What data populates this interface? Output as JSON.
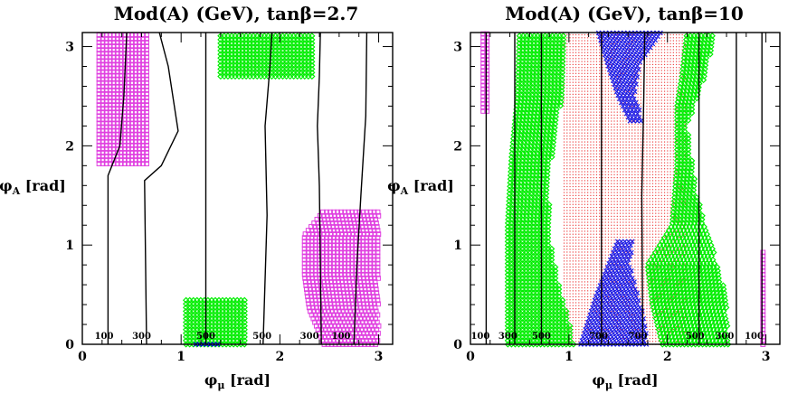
{
  "chart_data": [
    {
      "type": "scatter",
      "title": "Mod(A) (GeV), tanβ=2.7",
      "xlabel": "φμ [rad]",
      "ylabel": "φA [rad]",
      "xlim": [
        0,
        3.14159
      ],
      "ylim": [
        0,
        3.14159
      ],
      "x_ticks": [
        0,
        1,
        2,
        3
      ],
      "y_ticks": [
        0,
        1,
        2,
        3
      ],
      "grid": false,
      "series": [
        {
          "marker": "square",
          "color": "#e040e0",
          "regions": [
            {
              "x_range": [
                0.17,
                0.68
              ],
              "y_top": 3.14,
              "y_bot": 1.82,
              "right_profile": [
                [
                  3.14,
                  0.68
                ],
                [
                  2.7,
                  0.82
                ],
                [
                  2.3,
                  0.9
                ],
                [
                  2.1,
                  0.96
                ],
                [
                  1.82,
                  0.7
                ]
              ]
            },
            {
              "x_range": [
                2.2,
                3.0
              ],
              "y_top": 1.35,
              "y_bot": 0.0,
              "left_profile": [
                [
                  1.35,
                  2.45
                ],
                [
                  1.1,
                  2.25
                ],
                [
                  0.7,
                  2.25
                ],
                [
                  0.35,
                  2.3
                ],
                [
                  0.0,
                  2.45
                ]
              ]
            }
          ]
        },
        {
          "marker": "diamond",
          "color": "#00ee00",
          "regions": [
            {
              "x_range": [
                1.4,
                2.35
              ],
              "y_top": 3.14,
              "y_bot": 2.7
            },
            {
              "x_range": [
                1.05,
                1.65
              ],
              "y_top": 0.45,
              "y_bot": 0.0
            }
          ]
        },
        {
          "marker": "cross",
          "color": "#0000dd",
          "regions": [
            {
              "x_range": [
                1.15,
                1.4
              ],
              "y_top": 0.03,
              "y_bot": 0.0
            }
          ]
        }
      ],
      "contours": [
        {
          "label": "100",
          "label_x": 0.22,
          "points": [
            [
              0.26,
              0
            ],
            [
              0.26,
              1.7
            ],
            [
              0.38,
              2.0
            ],
            [
              0.42,
              2.5
            ],
            [
              0.45,
              3.14
            ]
          ]
        },
        {
          "label": "300",
          "label_x": 0.6,
          "points": [
            [
              0.65,
              0
            ],
            [
              0.63,
              1.65
            ],
            [
              0.8,
              1.8
            ],
            [
              0.97,
              2.15
            ],
            [
              0.87,
              2.8
            ],
            [
              0.78,
              3.14
            ]
          ]
        },
        {
          "label": "500",
          "label_x": 1.25,
          "points": [
            [
              1.25,
              0
            ],
            [
              1.25,
              3.14
            ]
          ]
        },
        {
          "label": "500",
          "label_x": 1.82,
          "points": [
            [
              1.83,
              0
            ],
            [
              1.87,
              1.3
            ],
            [
              1.85,
              2.2
            ],
            [
              1.9,
              2.8
            ],
            [
              1.92,
              3.14
            ]
          ]
        },
        {
          "label": "300",
          "label_x": 2.3,
          "points": [
            [
              2.42,
              0
            ],
            [
              2.4,
              1.6
            ],
            [
              2.38,
              2.2
            ],
            [
              2.4,
              2.7
            ],
            [
              2.41,
              3.14
            ]
          ]
        },
        {
          "label": "100",
          "label_x": 2.62,
          "points": [
            [
              2.75,
              0
            ],
            [
              2.78,
              0.8
            ],
            [
              2.82,
              1.5
            ],
            [
              2.87,
              2.3
            ],
            [
              2.88,
              3.14
            ]
          ]
        }
      ]
    },
    {
      "type": "scatter",
      "title": "Mod(A) (GeV), tanβ=10",
      "xlabel": "φμ [rad]",
      "ylabel": "φA [rad]",
      "xlim": [
        0,
        3.14159
      ],
      "ylim": [
        0,
        3.14159
      ],
      "x_ticks": [
        0,
        1,
        2,
        3
      ],
      "y_ticks": [
        0,
        1,
        2,
        3
      ],
      "grid": false,
      "series": [
        {
          "marker": "dot",
          "color": "#ee4444",
          "regions": [
            {
              "x_range": [
                0.95,
                2.2
              ],
              "y_top": 3.14,
              "y_bot": 0.0
            }
          ]
        },
        {
          "marker": "diamond",
          "color": "#00ee00",
          "regions": [
            {
              "x_range": [
                0.38,
                1.2
              ],
              "y_top": 3.14,
              "y_bot": 0.0,
              "right_profile": [
                [
                  3.14,
                  0.95
                ],
                [
                  2.6,
                  0.95
                ],
                [
                  2.2,
                  0.88
                ],
                [
                  1.7,
                  0.8
                ],
                [
                  1.1,
                  0.8
                ],
                [
                  0.6,
                  0.9
                ],
                [
                  0.25,
                  1.0
                ],
                [
                  0.0,
                  1.05
                ]
              ],
              "left_profile": [
                [
                  3.14,
                  0.5
                ],
                [
                  2.5,
                  0.48
                ],
                [
                  1.9,
                  0.42
                ],
                [
                  1.2,
                  0.38
                ],
                [
                  0.6,
                  0.38
                ],
                [
                  0.0,
                  0.38
                ]
              ]
            },
            {
              "x_range": [
                1.75,
                2.7
              ],
              "y_top": 3.14,
              "y_bot": 0.0,
              "left_profile": [
                [
                  3.14,
                  2.2
                ],
                [
                  2.7,
                  2.15
                ],
                [
                  2.4,
                  2.1
                ],
                [
                  1.8,
                  2.1
                ],
                [
                  1.2,
                  2.05
                ],
                [
                  0.8,
                  1.8
                ],
                [
                  0.4,
                  1.85
                ],
                [
                  0.0,
                  1.95
                ]
              ],
              "right_profile": [
                [
                  3.14,
                  2.5
                ],
                [
                  2.6,
                  2.35
                ],
                [
                  2.2,
                  2.2
                ],
                [
                  1.5,
                  2.3
                ],
                [
                  1.0,
                  2.45
                ],
                [
                  0.5,
                  2.6
                ],
                [
                  0.0,
                  2.62
                ]
              ]
            }
          ]
        },
        {
          "marker": "cross",
          "color": "#1a1ae6",
          "regions": [
            {
              "x_range": [
                1.3,
                1.95
              ],
              "y_top": 3.14,
              "y_bot": 2.25,
              "left_profile": [
                [
                  3.14,
                  1.3
                ],
                [
                  2.8,
                  1.4
                ],
                [
                  2.5,
                  1.5
                ],
                [
                  2.25,
                  1.62
                ]
              ],
              "right_profile": [
                [
                  3.14,
                  1.95
                ],
                [
                  2.8,
                  1.72
                ],
                [
                  2.5,
                  1.68
                ],
                [
                  2.25,
                  1.75
                ]
              ]
            },
            {
              "x_range": [
                1.12,
                1.8
              ],
              "y_top": 1.05,
              "y_bot": 0.0,
              "left_profile": [
                [
                  1.05,
                  1.5
                ],
                [
                  0.8,
                  1.4
                ],
                [
                  0.5,
                  1.28
                ],
                [
                  0.25,
                  1.2
                ],
                [
                  0.0,
                  1.12
                ]
              ],
              "right_profile": [
                [
                  1.05,
                  1.65
                ],
                [
                  0.8,
                  1.62
                ],
                [
                  0.5,
                  1.7
                ],
                [
                  0.25,
                  1.78
                ],
                [
                  0.0,
                  1.8
                ]
              ]
            }
          ]
        },
        {
          "marker": "square",
          "color": "#e040e0",
          "regions": [
            {
              "x_range": [
                0.13,
                0.17
              ],
              "y_top": 3.14,
              "y_bot": 2.35
            },
            {
              "x_range": [
                2.97,
                3.0
              ],
              "y_top": 0.95,
              "y_bot": 0.0
            }
          ]
        }
      ],
      "contours": [
        {
          "label": "100",
          "label_x": 0.1,
          "points": [
            [
              0.16,
              0
            ],
            [
              0.16,
              3.14
            ]
          ]
        },
        {
          "label": "300",
          "label_x": 0.38,
          "points": [
            [
              0.45,
              0
            ],
            [
              0.45,
              3.14
            ]
          ]
        },
        {
          "label": "500",
          "label_x": 0.72,
          "points": [
            [
              0.72,
              0
            ],
            [
              0.72,
              3.14
            ]
          ]
        },
        {
          "label": "700",
          "label_x": 1.3,
          "points": [
            [
              1.33,
              0
            ],
            [
              1.33,
              3.14
            ]
          ]
        },
        {
          "label": "700",
          "label_x": 1.7,
          "points": [
            [
              1.75,
              0
            ],
            [
              1.74,
              1.5
            ],
            [
              1.76,
              2.5
            ],
            [
              1.77,
              3.14
            ]
          ]
        },
        {
          "label": "500",
          "label_x": 2.28,
          "points": [
            [
              2.32,
              0
            ],
            [
              2.32,
              3.14
            ]
          ]
        },
        {
          "label": "300",
          "label_x": 2.58,
          "points": [
            [
              2.7,
              0
            ],
            [
              2.7,
              3.14
            ]
          ]
        },
        {
          "label": "100",
          "label_x": 2.88,
          "points": [
            [
              2.96,
              0
            ],
            [
              2.96,
              3.14
            ]
          ]
        }
      ]
    }
  ]
}
